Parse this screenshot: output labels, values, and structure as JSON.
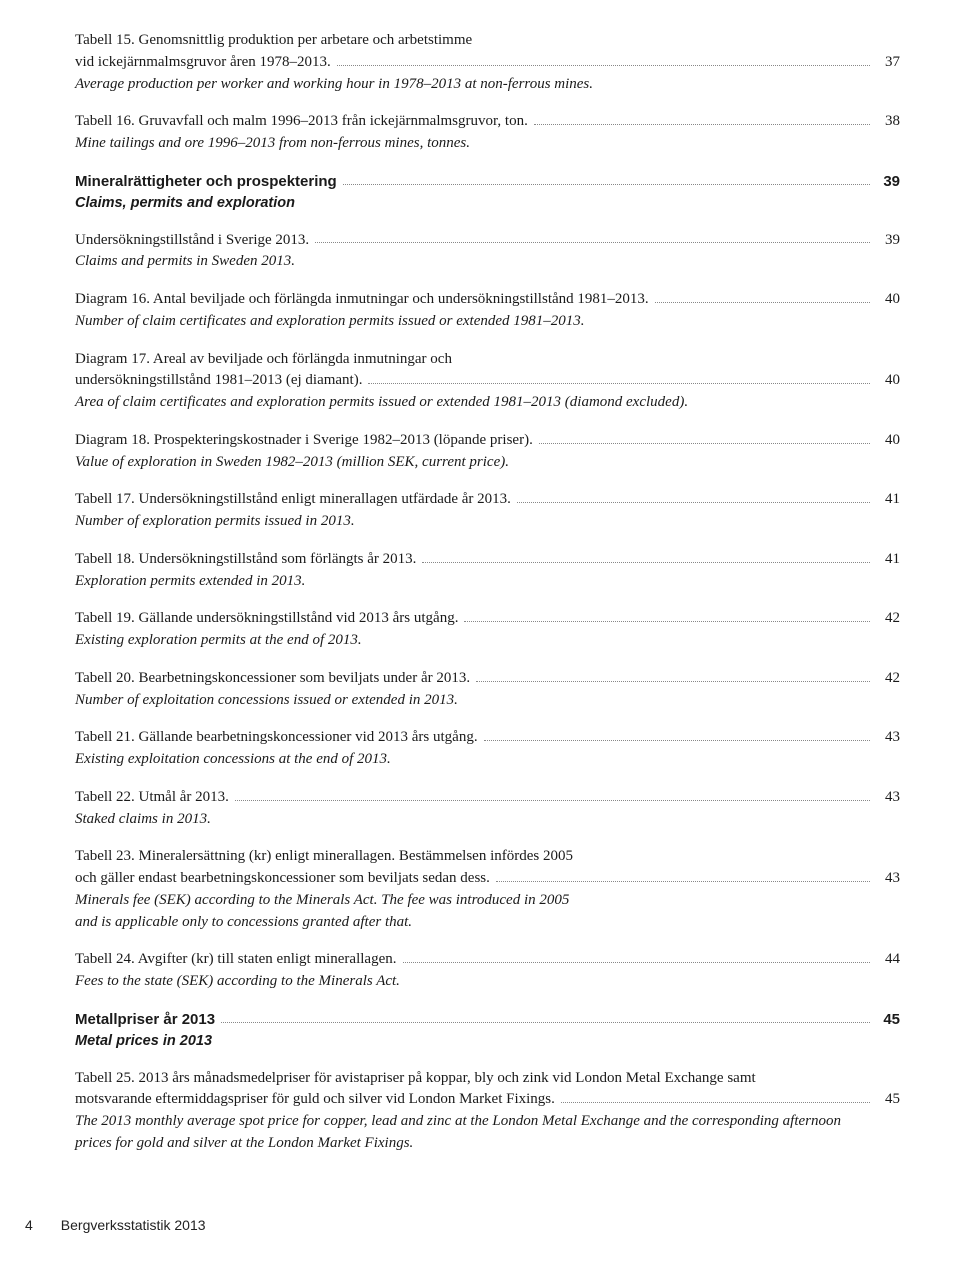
{
  "entries": [
    {
      "kind": "item",
      "lines_sv": [
        "Tabell 15. Genomsnittlig produktion per arbetare och arbetstimme",
        "vid ickejärnmalmsgruvor åren 1978–2013."
      ],
      "line_en": "Average production per worker and working hour in 1978–2013 at non-ferrous mines.",
      "page": "37"
    },
    {
      "kind": "item",
      "lines_sv": [
        "Tabell 16. Gruvavfall och malm 1996–2013 från ickejärnmalmsgruvor, ton."
      ],
      "line_en": "Mine tailings and ore 1996–2013 from non-ferrous mines, tonnes.",
      "page": "38"
    },
    {
      "kind": "section",
      "title_sv": "Mineralrättigheter och prospektering",
      "title_en": "Claims, permits and exploration",
      "page": "39"
    },
    {
      "kind": "item",
      "lines_sv": [
        "Undersökningstillstånd i Sverige 2013."
      ],
      "line_en": "Claims and permits in Sweden 2013.",
      "page": "39"
    },
    {
      "kind": "item",
      "lines_sv": [
        "Diagram 16. Antal beviljade och förlängda inmutningar och undersökningstillstånd 1981–2013."
      ],
      "line_en": "Number of claim certificates and exploration permits issued or extended 1981–2013.",
      "page": "40"
    },
    {
      "kind": "item",
      "lines_sv": [
        "Diagram 17. Areal av beviljade och förlängda inmutningar och",
        "undersökningstillstånd 1981–2013 (ej diamant)."
      ],
      "line_en": "Area of claim certificates and exploration permits issued or extended 1981–2013 (diamond excluded).",
      "page": "40"
    },
    {
      "kind": "item",
      "lines_sv": [
        "Diagram 18. Prospekteringskostnader i Sverige 1982–2013 (löpande priser)."
      ],
      "line_en": "Value of exploration in Sweden 1982–2013 (million SEK, current price).",
      "page": "40"
    },
    {
      "kind": "item",
      "lines_sv": [
        "Tabell 17. Undersökningstillstånd enligt minerallagen utfärdade år 2013."
      ],
      "line_en": "Number of exploration permits issued in 2013.",
      "page": "41"
    },
    {
      "kind": "item",
      "lines_sv": [
        "Tabell 18. Undersökningstillstånd som förlängts år 2013."
      ],
      "line_en": "Exploration permits extended in 2013.",
      "page": "41"
    },
    {
      "kind": "item",
      "lines_sv": [
        "Tabell 19. Gällande undersökningstillstånd vid 2013 års utgång."
      ],
      "line_en": "Existing exploration permits at the end of 2013.",
      "page": "42"
    },
    {
      "kind": "item",
      "lines_sv": [
        "Tabell 20. Bearbetningskoncessioner som beviljats under år 2013."
      ],
      "line_en": "Number of exploitation concessions issued or extended in 2013.",
      "page": "42"
    },
    {
      "kind": "item",
      "lines_sv": [
        "Tabell 21. Gällande bearbetningskoncessioner vid 2013 års utgång."
      ],
      "line_en": "Existing exploitation concessions at the end of 2013.",
      "page": "43"
    },
    {
      "kind": "item",
      "lines_sv": [
        "Tabell 22. Utmål år 2013."
      ],
      "line_en": "Staked claims in 2013.",
      "page": "43"
    },
    {
      "kind": "item",
      "lines_sv": [
        "Tabell 23. Mineralersättning (kr) enligt minerallagen. Bestämmelsen infördes 2005",
        "och gäller endast bearbetningskoncessioner som beviljats sedan dess."
      ],
      "lines_en": [
        "Minerals fee (SEK) according to the Minerals Act. The fee was introduced in 2005",
        "and is applicable only to concessions granted after that."
      ],
      "page": "43"
    },
    {
      "kind": "item",
      "lines_sv": [
        "Tabell 24. Avgifter (kr) till staten enligt minerallagen."
      ],
      "line_en": "Fees to the state (SEK) according to the Minerals Act.",
      "page": "44"
    },
    {
      "kind": "section",
      "title_sv": "Metallpriser år 2013",
      "title_en": "Metal prices in 2013",
      "page": "45"
    },
    {
      "kind": "item",
      "lines_sv": [
        "Tabell 25. 2013 års månadsmedelpriser för avistapriser på koppar, bly och zink vid London Metal Exchange samt",
        "motsvarande eftermiddagspriser för guld och silver vid London Market Fixings."
      ],
      "lines_en": [
        "The 2013 monthly average spot price for copper, lead and zinc at the London Metal Exchange and the corresponding afternoon",
        "prices for gold and silver at the London Market Fixings."
      ],
      "page": "45"
    }
  ],
  "footer": {
    "page_number": "4",
    "title": "Bergverksstatistik 2013"
  }
}
